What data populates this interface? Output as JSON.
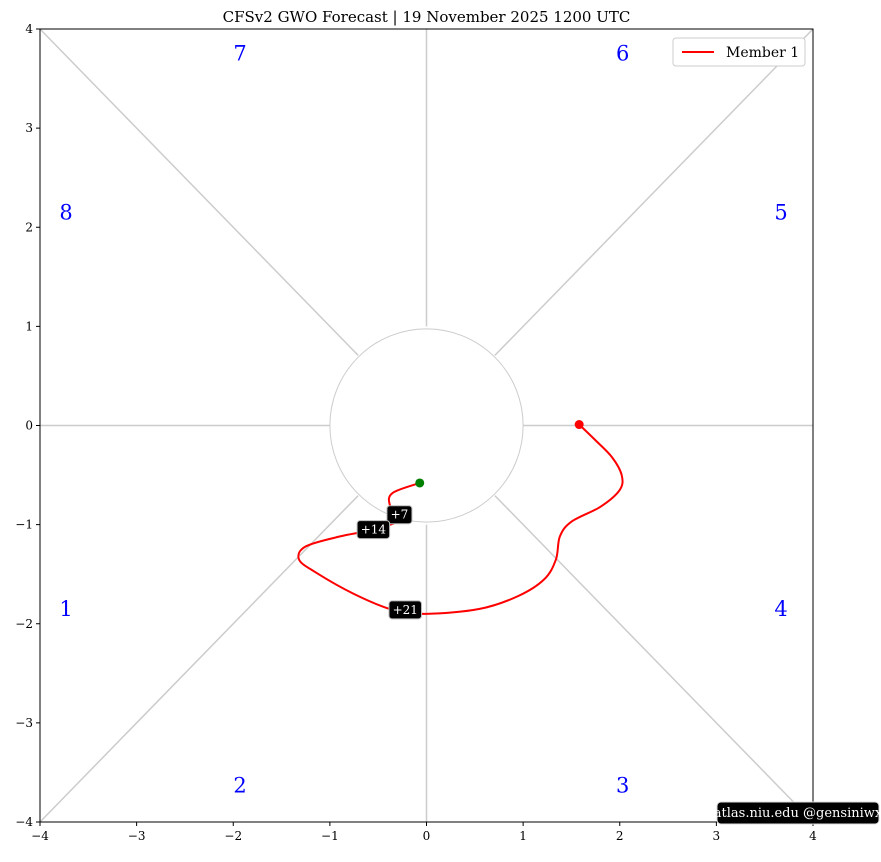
{
  "chart_data": {
    "type": "line",
    "title": "CFSv2 GWO Forecast   |   19  November  2025 1200 UTC",
    "xlim": [
      -4,
      4
    ],
    "ylim": [
      -4,
      4
    ],
    "x_ticks": [
      "−4",
      "−3",
      "−2",
      "−1",
      "0",
      "1",
      "2",
      "3",
      "4"
    ],
    "y_ticks": [
      "4",
      "3",
      "2",
      "1",
      "0",
      "−1",
      "−2",
      "−3",
      "−4"
    ],
    "grid": false,
    "legend_position": "top-right",
    "unit_circle_radius": 1,
    "phase_labels": [
      "1",
      "2",
      "3",
      "4",
      "5",
      "6",
      "7",
      "8"
    ],
    "phase_color": "#0000ff",
    "series": [
      {
        "name": "Member 1",
        "color": "#ff0000",
        "x": [
          1.58,
          1.75,
          1.92,
          2.02,
          2.0,
          1.8,
          1.5,
          1.38,
          1.34,
          1.22,
          0.95,
          0.55,
          0.0,
          -0.35,
          -0.75,
          -1.15,
          -1.32,
          -1.25,
          -0.9,
          -0.55,
          -0.28,
          -0.38,
          -0.35,
          -0.07
        ],
        "y": [
          0.01,
          -0.15,
          -0.32,
          -0.5,
          -0.65,
          -0.82,
          -0.97,
          -1.12,
          -1.35,
          -1.55,
          -1.72,
          -1.85,
          -1.9,
          -1.86,
          -1.7,
          -1.48,
          -1.35,
          -1.22,
          -1.12,
          -1.05,
          -0.95,
          -0.8,
          -0.68,
          -0.58
        ]
      }
    ],
    "start_marker": {
      "x": 1.58,
      "y": 0.01,
      "color": "#ff0000"
    },
    "end_marker": {
      "x": -0.07,
      "y": -0.58,
      "color": "#008000"
    },
    "annotations": [
      {
        "text": "+7",
        "x": -0.28,
        "y": -0.9
      },
      {
        "text": "+14",
        "x": -0.55,
        "y": -1.05
      },
      {
        "text": "+21",
        "x": -0.22,
        "y": -1.86
      }
    ],
    "credit": "atlas.niu.edu  @gensiniwx"
  }
}
